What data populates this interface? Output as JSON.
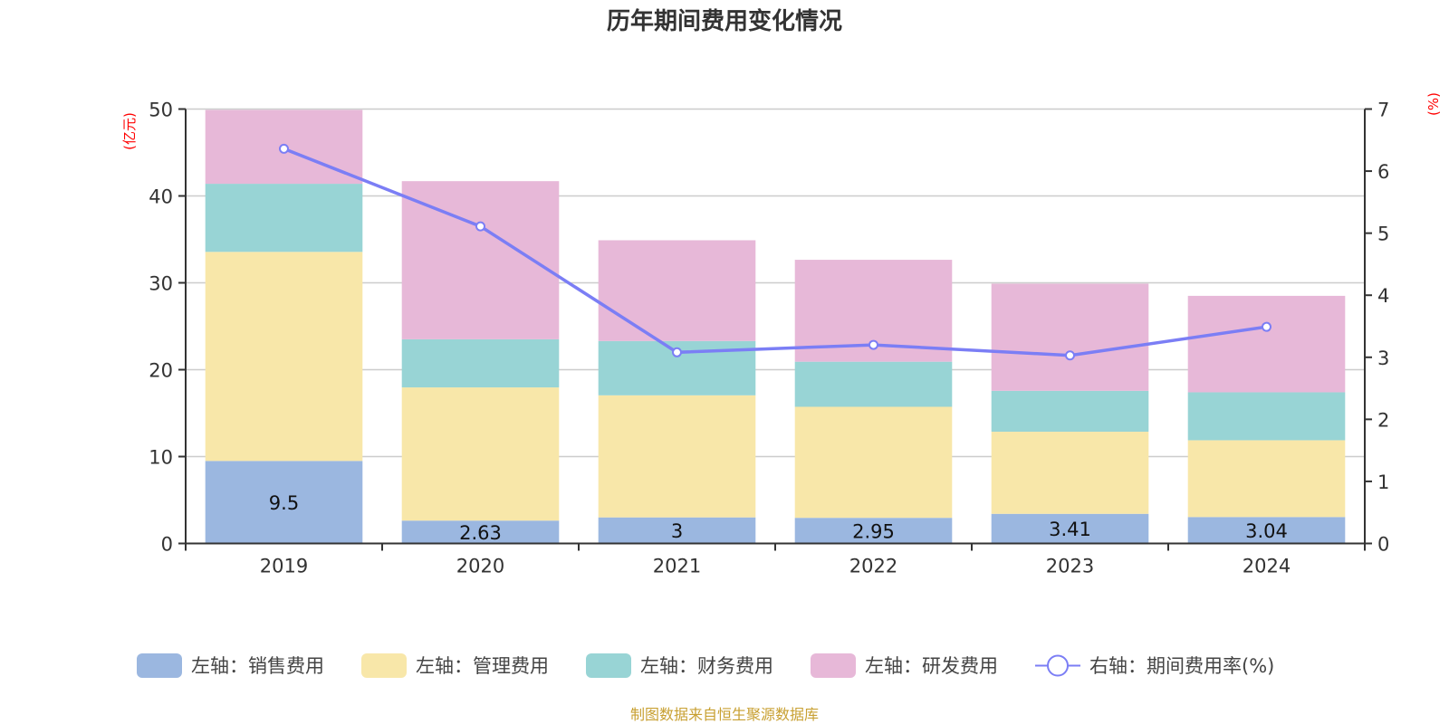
{
  "chart_data": {
    "type": "bar",
    "title": "历年期间费用变化情况",
    "categories": [
      "2019",
      "2020",
      "2021",
      "2022",
      "2023",
      "2024"
    ],
    "series": [
      {
        "name": "左轴：销售费用",
        "axis": "left",
        "kind": "bar",
        "stack": "cost",
        "color": "#9bb7e0",
        "values": [
          9.5,
          2.63,
          3,
          2.95,
          3.41,
          3.04
        ],
        "show_labels": true
      },
      {
        "name": "左轴：管理费用",
        "axis": "left",
        "kind": "bar",
        "stack": "cost",
        "color": "#f8e7a9",
        "values": [
          24.06,
          15.33,
          14.05,
          12.78,
          9.45,
          8.84
        ],
        "show_labels": false
      },
      {
        "name": "左轴：财务费用",
        "axis": "left",
        "kind": "bar",
        "stack": "cost",
        "color": "#98d4d5",
        "values": [
          7.84,
          5.54,
          6.25,
          5.19,
          4.71,
          5.52
        ],
        "show_labels": false
      },
      {
        "name": "左轴：研发费用",
        "axis": "left",
        "kind": "bar",
        "stack": "cost",
        "color": "#e7b8d8",
        "values": [
          8.5,
          18.2,
          11.6,
          11.73,
          12.33,
          11.1
        ],
        "show_labels": false
      },
      {
        "name": "右轴：期间费用率(%)",
        "axis": "right",
        "kind": "line",
        "color": "#7b7ef5",
        "values": [
          6.36,
          5.11,
          3.08,
          3.2,
          3.03,
          3.49
        ],
        "show_labels": false
      }
    ],
    "left_axis": {
      "unit_label": "(亿元)",
      "ylim": [
        0,
        50
      ],
      "ticks": [
        "0",
        "10",
        "20",
        "30",
        "40",
        "50"
      ]
    },
    "right_axis": {
      "unit_label": "(%)",
      "ylim": [
        0,
        7
      ],
      "ticks": [
        "0",
        "1",
        "2",
        "3",
        "4",
        "5",
        "6",
        "7"
      ]
    },
    "grid": true,
    "legend_position": "bottom",
    "xlabel": "",
    "ylabel": "(亿元)"
  },
  "footer": {
    "source": "制图数据来自恒生聚源数据库"
  }
}
